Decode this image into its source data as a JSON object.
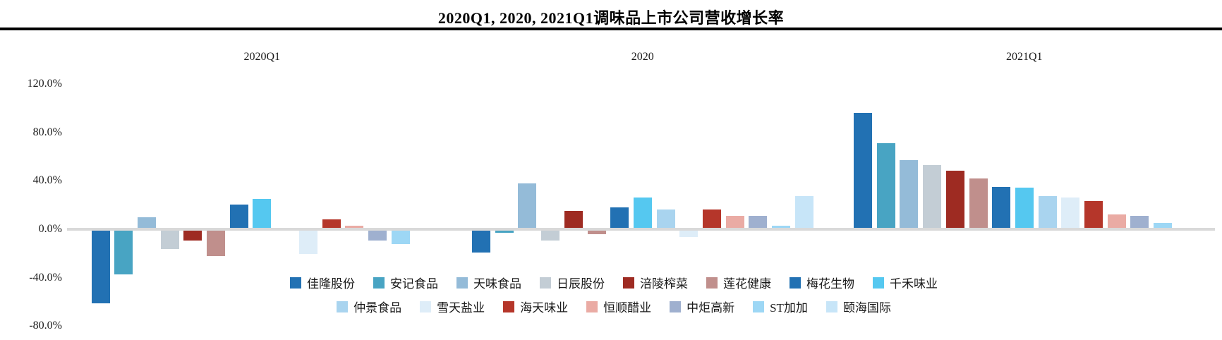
{
  "title": "2020Q1, 2020, 2021Q1调味品上市公司营收增长率",
  "chart_data": {
    "type": "bar",
    "title": "2020Q1, 2020, 2021Q1调味品上市公司营收增长率",
    "groups": [
      "2020Q1",
      "2020",
      "2021Q1"
    ],
    "unit": "percent",
    "y_ticks": [
      {
        "label": "120.0%",
        "value": 120
      },
      {
        "label": "80.0%",
        "value": 80
      },
      {
        "label": "40.0%",
        "value": 40
      },
      {
        "label": "0.0%",
        "value": 0
      },
      {
        "label": "-40.0%",
        "value": -40
      },
      {
        "label": "-80.0%",
        "value": -80
      }
    ],
    "ylim": [
      -80,
      120
    ],
    "grid": false,
    "legend_position": "bottom-center-inside",
    "legend_rows": [
      8,
      7
    ],
    "series": [
      {
        "name": "佳隆股份",
        "color": "#2271B3",
        "values": [
          -60,
          -18,
          95
        ]
      },
      {
        "name": "安记食品",
        "color": "#48A4C3",
        "values": [
          -36,
          -2,
          70
        ]
      },
      {
        "name": "天味食品",
        "color": "#94BBD8",
        "values": [
          9,
          37,
          56
        ]
      },
      {
        "name": "日辰股份",
        "color": "#C3CDD5",
        "values": [
          -15,
          -8,
          52
        ]
      },
      {
        "name": "涪陵榨菜",
        "color": "#9E2B22",
        "values": [
          -8,
          14,
          47
        ]
      },
      {
        "name": "莲花健康",
        "color": "#C08F8C",
        "values": [
          -21,
          -3,
          41
        ]
      },
      {
        "name": "梅花生物",
        "color": "#2271B3",
        "values": [
          19,
          17,
          34
        ]
      },
      {
        "name": "千禾味业",
        "color": "#55C8F0",
        "values": [
          24,
          25,
          33
        ]
      },
      {
        "name": "仲景食品",
        "color": "#A9D4EF",
        "values": [
          null,
          15,
          26
        ]
      },
      {
        "name": "雪天盐业",
        "color": "#DEEDF8",
        "values": [
          -19,
          -5,
          25
        ]
      },
      {
        "name": "海天味业",
        "color": "#B5362A",
        "values": [
          7,
          15,
          22
        ]
      },
      {
        "name": "恒顺醋业",
        "color": "#EAABA4",
        "values": [
          2,
          10,
          11
        ]
      },
      {
        "name": "中炬高新",
        "color": "#9FB0CF",
        "values": [
          -8,
          10,
          10
        ]
      },
      {
        "name": "ST加加",
        "color": "#9DD7F5",
        "values": [
          -11,
          2,
          4
        ]
      },
      {
        "name": "颐海国际",
        "color": "#C7E5F8",
        "values": [
          null,
          26,
          null
        ]
      }
    ]
  },
  "colors": {
    "baseline": "#D9D9D9",
    "title_rule": "#000000",
    "text": "#1a1a1a"
  }
}
